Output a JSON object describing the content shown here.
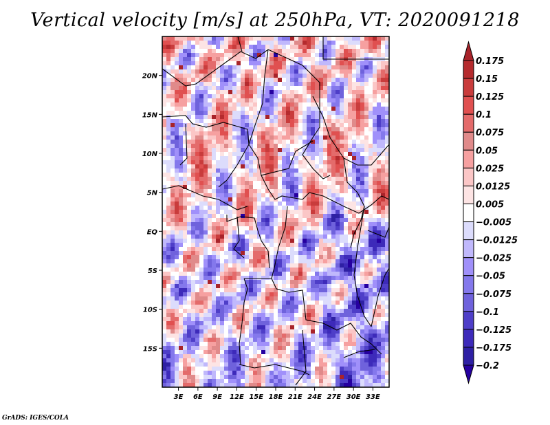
{
  "title": "Vertical velocity [m/s] at 250hPa, VT: 2020091218",
  "credit": "GrADS: IGES/COLA",
  "map": {
    "variable": "Vertical velocity",
    "units": "m/s",
    "level": "250hPa",
    "valid_time": "2020091218",
    "lat_ticks": [
      "20N",
      "15N",
      "10N",
      "5N",
      "EQ",
      "5S",
      "10S",
      "15S"
    ],
    "lat_values": [
      20,
      15,
      10,
      5,
      0,
      -5,
      -10,
      -15
    ],
    "lon_ticks": [
      "3E",
      "6E",
      "9E",
      "12E",
      "15E",
      "18E",
      "21E",
      "24E",
      "27E",
      "30E",
      "33E"
    ],
    "lon_values": [
      3,
      6,
      9,
      12,
      15,
      18,
      21,
      24,
      27,
      30,
      33
    ],
    "lon_range": [
      0.5,
      35.5
    ],
    "lat_range": [
      -20,
      25
    ],
    "region": "Central Africa"
  },
  "colorbar": {
    "labels": [
      "0.175",
      "0.15",
      "0.125",
      "0.1",
      "0.075",
      "0.05",
      "0.025",
      "0.0125",
      "0.005",
      "−0.005",
      "−0.0125",
      "−0.025",
      "−0.05",
      "−0.075",
      "−0.1",
      "−0.125",
      "−0.175",
      "−0.2"
    ],
    "colors": [
      "#a8232a",
      "#b52b2e",
      "#c93c3c",
      "#e05050",
      "#e46b6b",
      "#e08a8a",
      "#f6a0a0",
      "#fbc6c6",
      "#fde4e4",
      "#ffffff",
      "#dcdcfc",
      "#c0b8fc",
      "#a090fa",
      "#8478ec",
      "#6f62dc",
      "#4e3ec8",
      "#3d2aba",
      "#2e20a4",
      "#2600a0"
    ]
  }
}
